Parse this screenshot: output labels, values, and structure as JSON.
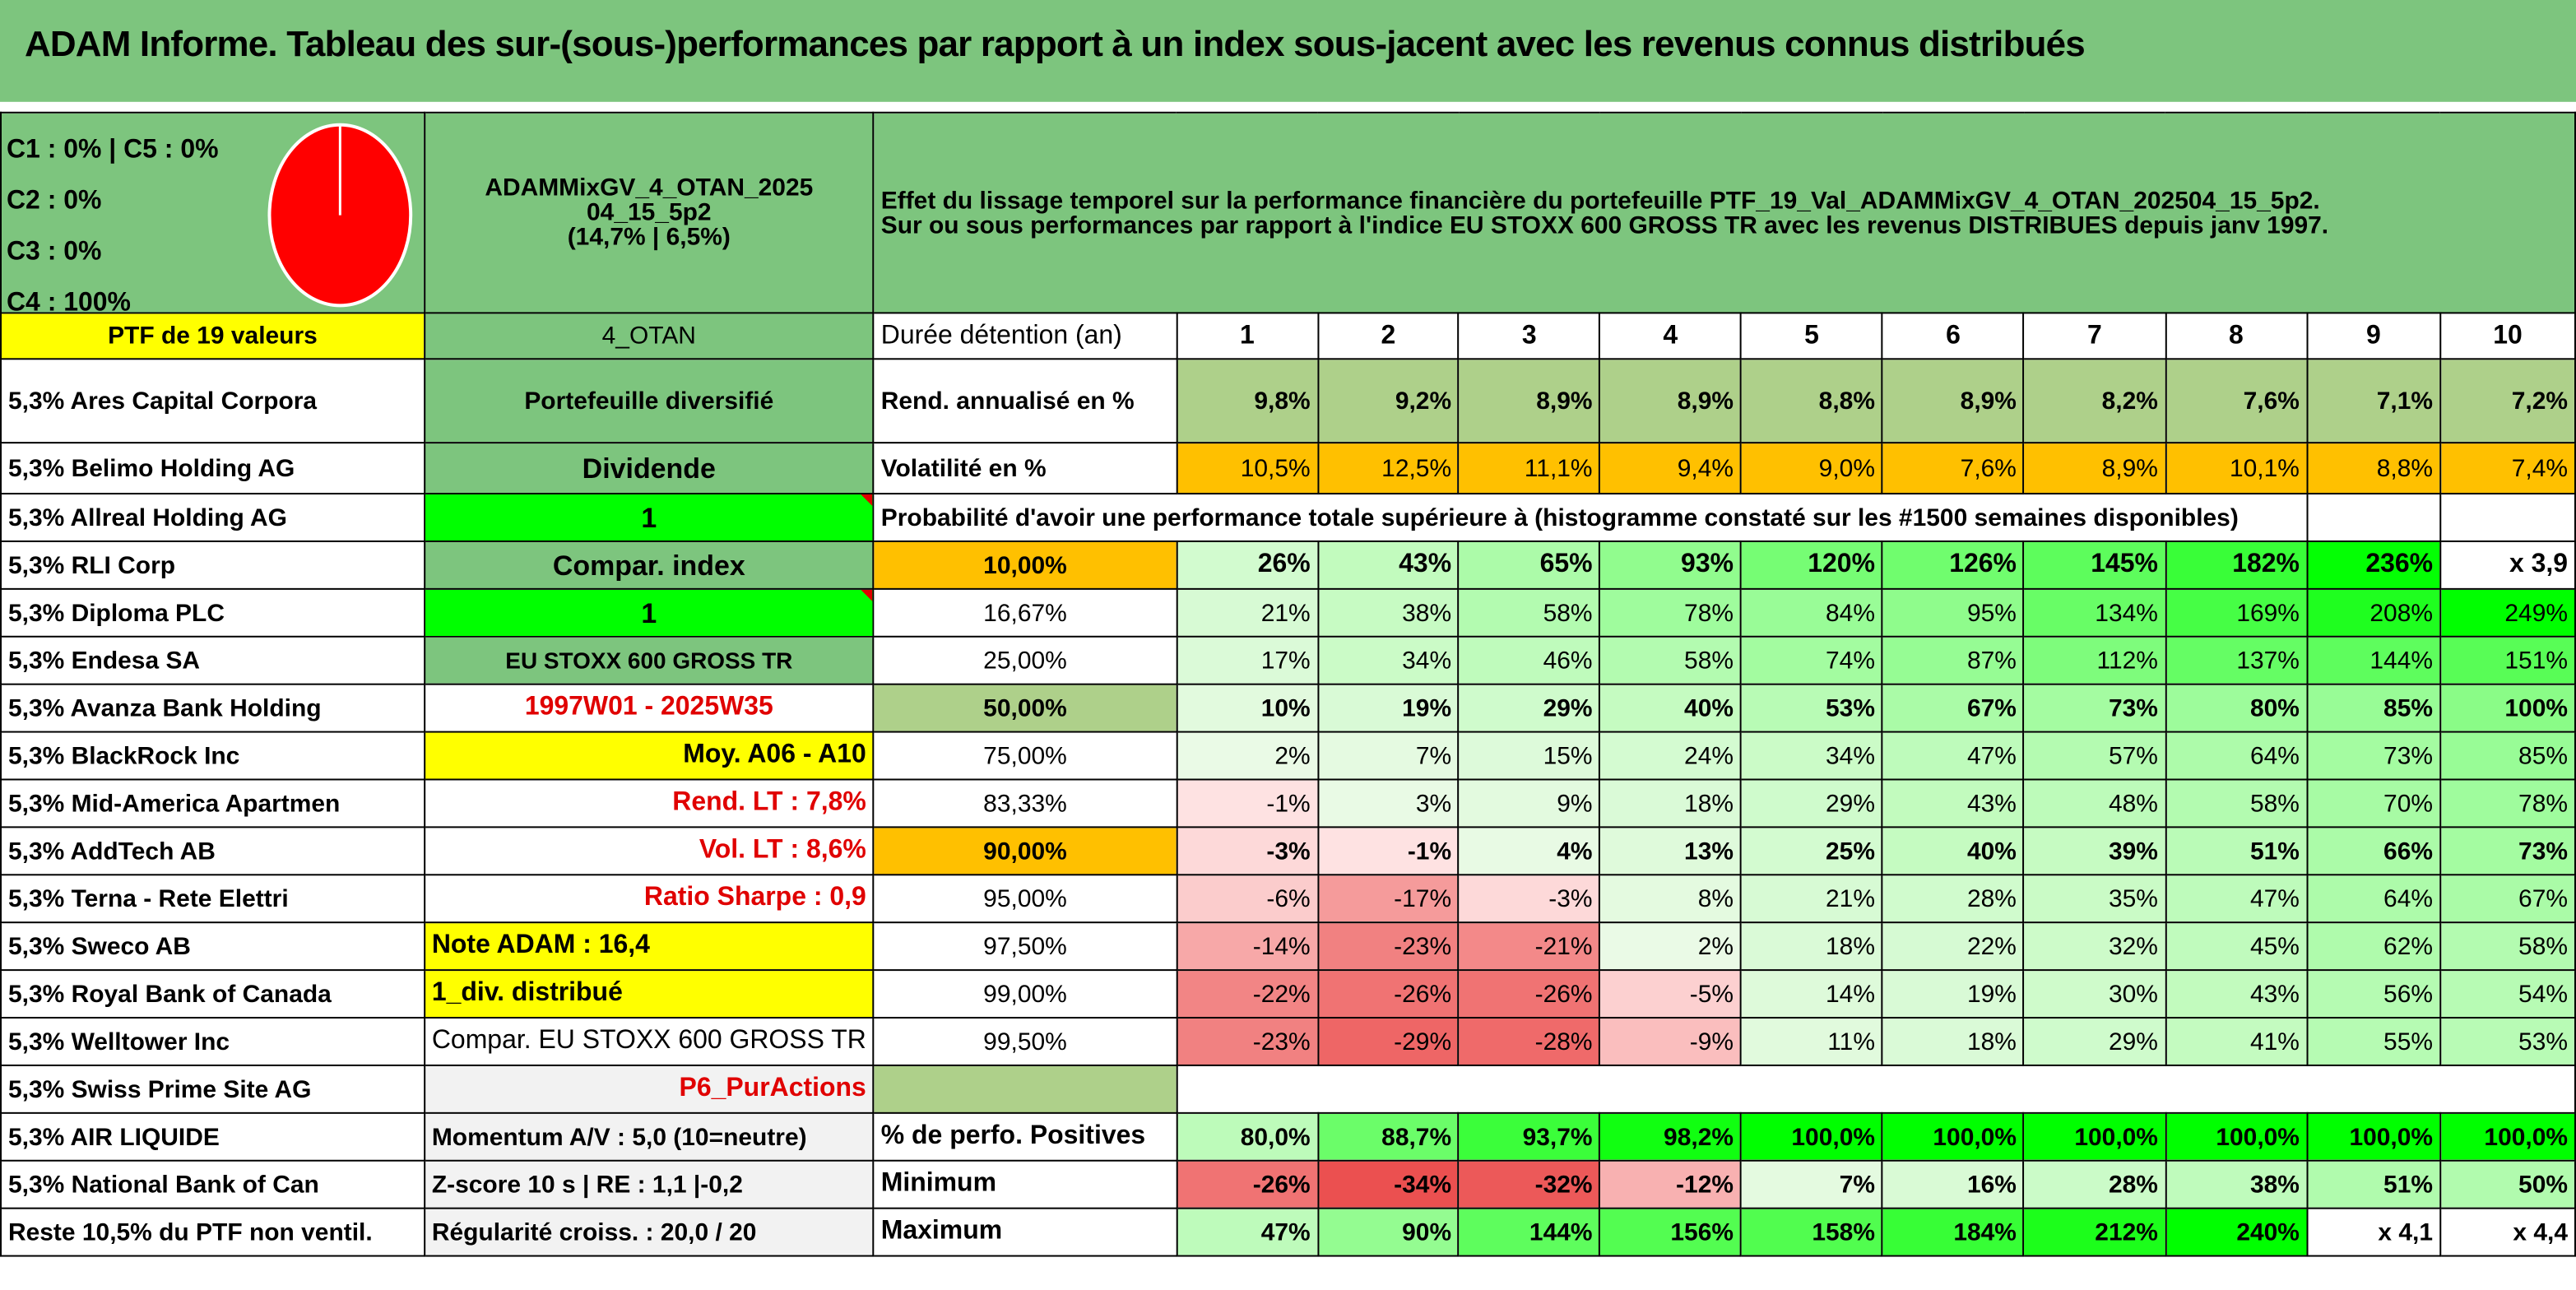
{
  "title": "ADAM Informe. Tableau des sur-(sous-)performances par rapport à un index sous-jacent avec les revenus connus distribués",
  "legend": [
    "C1 : 0% | C5 : 0%",
    "C2 : 0%",
    "C3 : 0%",
    "C4 : 100%"
  ],
  "pie": {
    "slices": [
      {
        "label": "C4",
        "value": 100,
        "color": "#ff0000"
      }
    ]
  },
  "portfolio_name": [
    "ADAMMixGV_4_OTAN_2025",
    "04_15_5p2",
    "(14,7% | 6,5%)"
  ],
  "description": [
    "Effet du lissage temporel sur la performance financière du portefeuille PTF_19_Val_ADAMMixGV_4_OTAN_202504_15_5p2.",
    "Sur ou sous performances par rapport à l'indice EU STOXX 600 GROSS TR avec les revenus DISTRIBUES depuis janv 1997."
  ],
  "ptf_header": "PTF de 19 valeurs",
  "holdings": [
    "5,3% Ares Capital Corpora",
    "5,3% Belimo Holding AG",
    "5,3% Allreal Holding AG",
    "5,3% RLI Corp",
    "5,3% Diploma PLC",
    "5,3% Endesa SA",
    "5,3% Avanza Bank Holding",
    "5,3% BlackRock Inc",
    "5,3% Mid-America Apartmen",
    "5,3% AddTech AB",
    "5,3% Terna - Rete Elettri",
    "5,3% Sweco AB",
    "5,3% Royal Bank of Canada",
    "5,3% Welltower Inc",
    "5,3% Swiss Prime Site AG",
    "5,3% AIR LIQUIDE",
    "5,3% National Bank of Can",
    "Reste 10,5% du PTF non ventil."
  ],
  "info": [
    "4_OTAN",
    "Portefeuille diversifié",
    "Dividende",
    "1",
    "Compar. index",
    "1",
    "EU STOXX 600 GROSS TR",
    "1997W01 - 2025W35",
    "Moy. A06 - A10",
    "Rend. LT : 7,8%",
    "Vol. LT : 8,6%",
    "Ratio Sharpe : 0,9",
    "Note ADAM : 16,4",
    "1_div. distribué",
    "Compar. EU STOXX 600 GROSS TR",
    "P6_PurActions",
    "Momentum A/V : 5,0 (10=neutre)",
    "Z-score 10 s | RE : 1,1 |-0,2",
    "Régularité croiss. : 20,0 / 20"
  ],
  "stats": {
    "duration_label": "Durée détention (an)",
    "years": [
      "1",
      "2",
      "3",
      "4",
      "5",
      "6",
      "7",
      "8",
      "9",
      "10"
    ],
    "rend_label": "Rend. annualisé en %",
    "rend": [
      "9,8%",
      "9,2%",
      "8,9%",
      "8,9%",
      "8,8%",
      "8,9%",
      "8,2%",
      "7,6%",
      "7,1%",
      "7,2%"
    ],
    "vol_label": "Volatilité en %",
    "vol": [
      "10,5%",
      "12,5%",
      "11,1%",
      "9,4%",
      "9,0%",
      "7,6%",
      "8,9%",
      "10,1%",
      "8,8%",
      "7,4%"
    ],
    "prob_label": "Probabilité d'avoir une performance totale supérieure à (histogramme constaté sur les #1500 semaines disponibles)",
    "prob_rows": [
      {
        "p": "10,00%",
        "v": [
          "26%",
          "43%",
          "65%",
          "93%",
          "120%",
          "126%",
          "145%",
          "182%",
          "236%",
          "x 3,9"
        ]
      },
      {
        "p": "16,67%",
        "v": [
          "21%",
          "38%",
          "58%",
          "78%",
          "84%",
          "95%",
          "134%",
          "169%",
          "208%",
          "249%"
        ]
      },
      {
        "p": "25,00%",
        "v": [
          "17%",
          "34%",
          "46%",
          "58%",
          "74%",
          "87%",
          "112%",
          "137%",
          "144%",
          "151%"
        ]
      },
      {
        "p": "50,00%",
        "v": [
          "10%",
          "19%",
          "29%",
          "40%",
          "53%",
          "67%",
          "73%",
          "80%",
          "85%",
          "100%"
        ]
      },
      {
        "p": "75,00%",
        "v": [
          "2%",
          "7%",
          "15%",
          "24%",
          "34%",
          "47%",
          "57%",
          "64%",
          "73%",
          "85%"
        ]
      },
      {
        "p": "83,33%",
        "v": [
          "-1%",
          "3%",
          "9%",
          "18%",
          "29%",
          "43%",
          "48%",
          "58%",
          "70%",
          "78%"
        ]
      },
      {
        "p": "90,00%",
        "v": [
          "-3%",
          "-1%",
          "4%",
          "13%",
          "25%",
          "40%",
          "39%",
          "51%",
          "66%",
          "73%"
        ]
      },
      {
        "p": "95,00%",
        "v": [
          "-6%",
          "-17%",
          "-3%",
          "8%",
          "21%",
          "28%",
          "35%",
          "47%",
          "64%",
          "67%"
        ]
      },
      {
        "p": "97,50%",
        "v": [
          "-14%",
          "-23%",
          "-21%",
          "2%",
          "18%",
          "22%",
          "32%",
          "45%",
          "62%",
          "58%"
        ]
      },
      {
        "p": "99,00%",
        "v": [
          "-22%",
          "-26%",
          "-26%",
          "-5%",
          "14%",
          "19%",
          "30%",
          "43%",
          "56%",
          "54%"
        ]
      },
      {
        "p": "99,50%",
        "v": [
          "-23%",
          "-29%",
          "-28%",
          "-9%",
          "11%",
          "18%",
          "29%",
          "41%",
          "55%",
          "53%"
        ]
      }
    ],
    "pos_label": "% de perfo. Positives",
    "pos": [
      "80,0%",
      "88,7%",
      "93,7%",
      "98,2%",
      "100,0%",
      "100,0%",
      "100,0%",
      "100,0%",
      "100,0%",
      "100,0%"
    ],
    "min_label": "Minimum",
    "min": [
      "-26%",
      "-34%",
      "-32%",
      "-12%",
      "7%",
      "16%",
      "28%",
      "38%",
      "51%",
      "50%"
    ],
    "max_label": "Maximum",
    "max": [
      "47%",
      "90%",
      "144%",
      "156%",
      "158%",
      "184%",
      "212%",
      "240%",
      "x 4,1",
      "x 4,4"
    ]
  }
}
